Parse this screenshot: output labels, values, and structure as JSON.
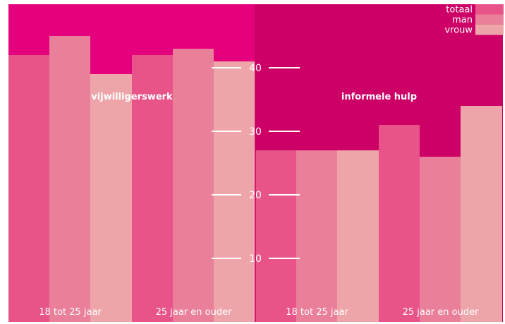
{
  "chart_data": {
    "type": "bar",
    "panels": [
      {
        "title": "vijwilligerswerk",
        "background": "#e5007d",
        "groups": [
          {
            "label": "18 tot 25 jaar",
            "values": [
              42,
              45,
              39
            ]
          },
          {
            "label": "25 jaar en ouder",
            "values": [
              42,
              43,
              41
            ]
          }
        ]
      },
      {
        "title": "informele hulp",
        "background": "#cc0066",
        "groups": [
          {
            "label": "18 tot 25 jaar",
            "values": [
              27,
              27,
              27
            ]
          },
          {
            "label": "25 jaar en ouder",
            "values": [
              31,
              26,
              34
            ]
          }
        ]
      }
    ],
    "series": [
      {
        "name": "totaal",
        "color": "#e8548a"
      },
      {
        "name": "man",
        "color": "#ea7f9a"
      },
      {
        "name": "vrouw",
        "color": "#eea5aa"
      }
    ],
    "yticks": [
      10,
      20,
      30,
      40
    ],
    "ylim": [
      0,
      50
    ],
    "legend_position": "top-right",
    "axis_color": "#ffffff",
    "text_color": "#ffffff"
  }
}
